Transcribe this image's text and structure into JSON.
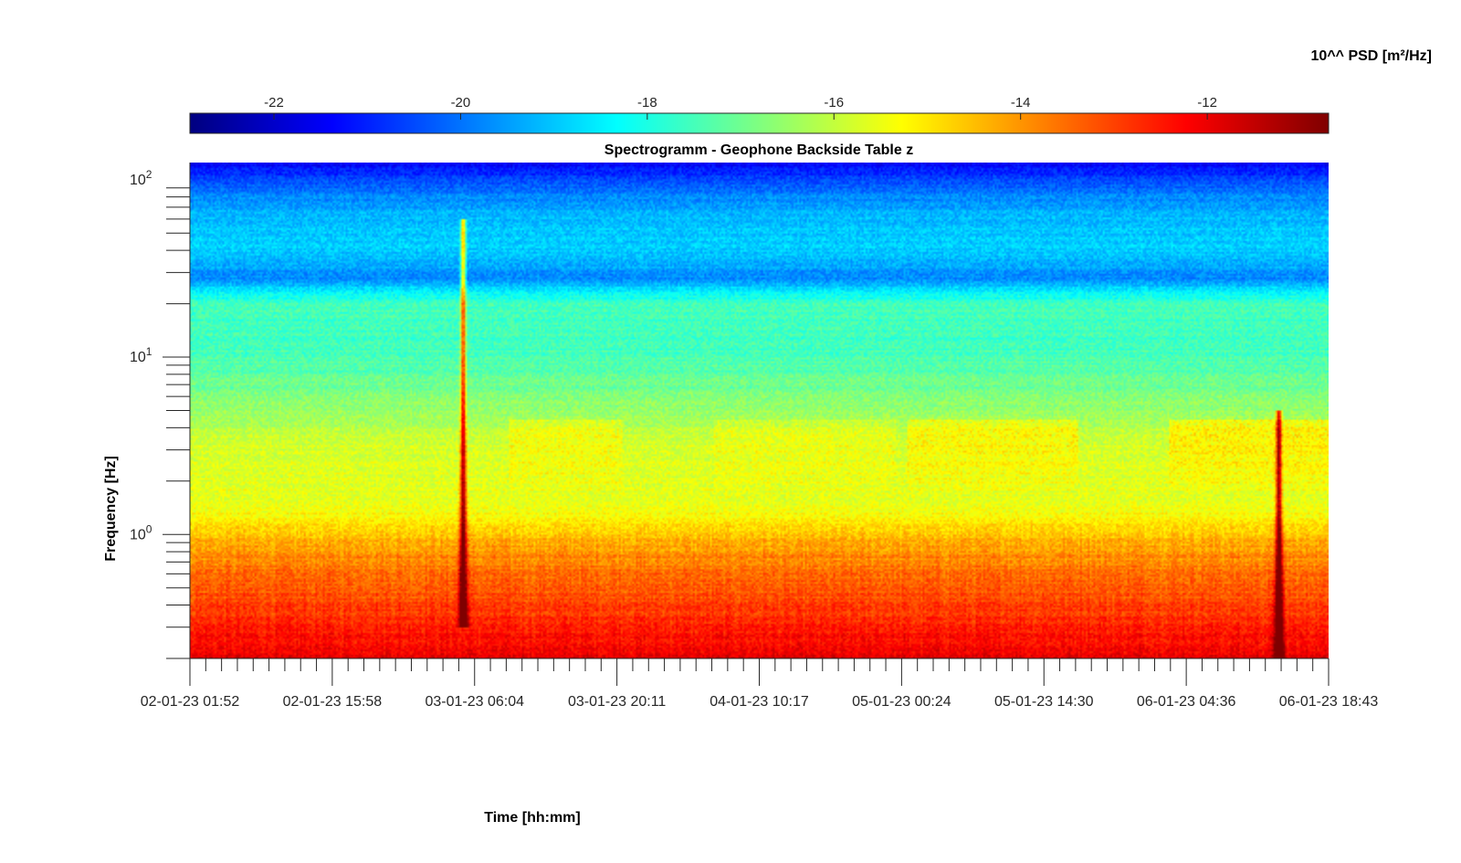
{
  "chart_data": {
    "type": "heatmap",
    "title": "Spectrogramm - Geophone Backside Table z",
    "xlabel": "Time [hh:mm]",
    "ylabel": "Frequency [Hz]",
    "colorbar_label": "10^^ PSD [m²/Hz]",
    "colormap": "jet",
    "y_scale": "log",
    "ylim": [
      0.2,
      125
    ],
    "clim": [
      -22.9,
      -10.7
    ],
    "x_tick_labels": [
      "02-01-23 01:52",
      "02-01-23 15:58",
      "03-01-23 06:04",
      "03-01-23 20:11",
      "04-01-23 10:17",
      "05-01-23 00:24",
      "05-01-23 14:30",
      "06-01-23 04:36",
      "06-01-23 18:43"
    ],
    "y_ticks": [
      {
        "value": 1,
        "base": "10",
        "exp": "0"
      },
      {
        "value": 10,
        "base": "10",
        "exp": "1"
      },
      {
        "value": 100,
        "base": "10",
        "exp": "2"
      }
    ],
    "colorbar_ticks": [
      "-22",
      "-20",
      "-18",
      "-16",
      "-14",
      "-12"
    ],
    "colorbar_tick_values": [
      -22,
      -20,
      -18,
      -16,
      -14,
      -12
    ],
    "profile_log10_psd_vs_frequency": [
      {
        "f": 0.2,
        "psd": -11.9
      },
      {
        "f": 0.3,
        "psd": -12.6
      },
      {
        "f": 0.5,
        "psd": -13.3
      },
      {
        "f": 0.8,
        "psd": -14.0
      },
      {
        "f": 1.0,
        "psd": -14.6
      },
      {
        "f": 1.5,
        "psd": -15.6
      },
      {
        "f": 3.0,
        "psd": -15.7
      },
      {
        "f": 5.0,
        "psd": -16.5
      },
      {
        "f": 8.0,
        "psd": -17.2
      },
      {
        "f": 12.0,
        "psd": -17.6
      },
      {
        "f": 20.0,
        "psd": -17.5
      },
      {
        "f": 28.0,
        "psd": -19.7
      },
      {
        "f": 40.0,
        "psd": -18.9
      },
      {
        "f": 60.0,
        "psd": -19.1
      },
      {
        "f": 85.0,
        "psd": -19.9
      },
      {
        "f": 125.0,
        "psd": -21.5
      }
    ],
    "events": [
      {
        "time": "03-01-23 05:12",
        "f_min": 0.3,
        "f_max": 60,
        "peak_psd": -12.0
      },
      {
        "time": "06-01-23 12:05",
        "f_min": 0.2,
        "f_max": 5,
        "peak_psd": -11.5
      }
    ]
  }
}
